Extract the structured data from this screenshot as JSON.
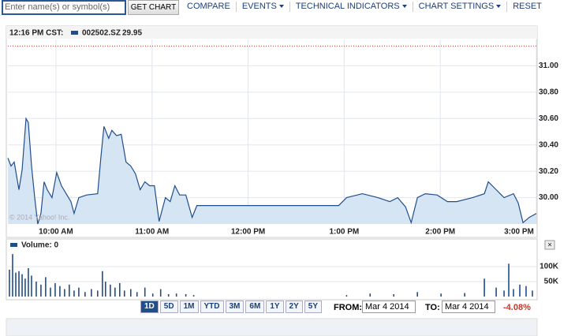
{
  "toolbar": {
    "search_placeholder": "Enter name(s) or symbol(s)",
    "button": "GET CHART",
    "menu": [
      "COMPARE",
      "EVENTS",
      "TECHNICAL INDICATORS",
      "CHART SETTINGS",
      "RESET"
    ]
  },
  "chart_data": [
    {
      "type": "line",
      "time_label": "12:16 PM CST:",
      "legend_value": 29.95,
      "copyright": "© 2014 Yahoo! Inc.",
      "reference_line": 31.15,
      "reference_color": "#c0392b",
      "series": [
        {
          "name": "002502.SZ",
          "color": "#1f4e8c",
          "fill": "#d6e5f3",
          "x": [
            9.5,
            9.533,
            9.566,
            9.615,
            9.648,
            9.689,
            9.713,
            9.746,
            9.779,
            9.811,
            9.844,
            9.877,
            9.91,
            9.959,
            10.008,
            10.057,
            10.107,
            10.156,
            10.189,
            10.238,
            10.32,
            10.434,
            10.467,
            10.5,
            10.549,
            10.582,
            10.631,
            10.68,
            10.73,
            10.779,
            10.828,
            10.877,
            10.926,
            10.975,
            11.025,
            11.074,
            11.139,
            11.189,
            11.238,
            11.287,
            11.352,
            11.418,
            11.467,
            12.943,
            13.025,
            13.189,
            13.352,
            13.475,
            13.557,
            13.639,
            13.697,
            13.762,
            13.844,
            13.967,
            14.074,
            14.172,
            14.336,
            14.459,
            14.5,
            14.582,
            14.664,
            14.762,
            14.811,
            14.861,
            14.926,
            15.0
          ],
          "values": [
            30.3,
            30.24,
            30.27,
            30.06,
            30.21,
            30.6,
            30.57,
            30.24,
            30.0,
            29.8,
            29.88,
            30.12,
            30.06,
            30.0,
            30.19,
            30.09,
            30.03,
            29.97,
            29.88,
            30.0,
            30.02,
            30.03,
            30.3,
            30.54,
            30.45,
            30.51,
            30.47,
            30.48,
            30.27,
            30.24,
            30.18,
            30.06,
            30.12,
            30.09,
            30.09,
            29.82,
            30.0,
            29.97,
            30.09,
            30.02,
            30.02,
            29.85,
            29.94,
            29.94,
            30.0,
            30.03,
            30.0,
            29.97,
            30.0,
            29.93,
            29.81,
            30.0,
            30.03,
            30.02,
            29.97,
            29.97,
            30.0,
            30.03,
            30.12,
            30.06,
            30.0,
            30.03,
            29.96,
            29.81,
            29.85,
            29.88
          ]
        }
      ],
      "xlim": [
        9.5,
        15.0
      ],
      "xticks": [
        {
          "value": 10,
          "label": "10:00 AM"
        },
        {
          "value": 11,
          "label": "11:00 AM"
        },
        {
          "value": 12,
          "label": "12:00 PM"
        },
        {
          "value": 13,
          "label": "1:00 PM"
        },
        {
          "value": 14,
          "label": "2:00 PM"
        },
        {
          "value": 15,
          "label": "3:00 PM"
        }
      ],
      "ylim": [
        29.8,
        31.2
      ],
      "yticks": [
        {
          "value": 30,
          "label": "30.00"
        },
        {
          "value": 30.2,
          "label": "30.20"
        },
        {
          "value": 30.4,
          "label": "30.40"
        },
        {
          "value": 30.6,
          "label": "30.60"
        },
        {
          "value": 30.8,
          "label": "30.80"
        },
        {
          "value": 31,
          "label": "31.00"
        }
      ],
      "grid": true
    },
    {
      "type": "bar",
      "legend": "Volume: 0",
      "color": "#1f4e8c",
      "x": [
        9.516,
        9.549,
        9.582,
        9.615,
        9.648,
        9.68,
        9.713,
        9.746,
        9.795,
        9.844,
        9.893,
        9.943,
        9.992,
        10.041,
        10.09,
        10.139,
        10.189,
        10.238,
        10.303,
        10.369,
        10.434,
        10.484,
        10.516,
        10.566,
        10.615,
        10.664,
        10.713,
        10.779,
        10.844,
        10.926,
        11.008,
        11.09,
        11.172,
        11.254,
        11.352,
        11.434,
        13.025,
        13.27,
        13.516,
        13.762,
        14.008,
        14.254,
        14.459,
        14.582,
        14.664,
        14.713,
        14.762,
        14.828,
        14.893,
        14.959
      ],
      "values": [
        90000,
        142000,
        80000,
        85000,
        75000,
        60000,
        95000,
        70000,
        50000,
        40000,
        65000,
        30000,
        45000,
        35000,
        25000,
        40000,
        20000,
        30000,
        15000,
        25000,
        20000,
        85000,
        50000,
        40000,
        30000,
        45000,
        20000,
        25000,
        15000,
        30000,
        10000,
        25000,
        8000,
        10000,
        8000,
        5000,
        5000,
        10000,
        8000,
        15000,
        10000,
        12000,
        60000,
        30000,
        20000,
        110000,
        25000,
        40000,
        35000,
        20000
      ],
      "xlim": [
        9.5,
        15.0
      ],
      "ylim": [
        0,
        145000
      ],
      "yticks": [
        {
          "value": 50000,
          "label": "50K"
        },
        {
          "value": 100000,
          "label": "100K"
        }
      ],
      "grid": true
    }
  ],
  "controls": {
    "ranges": [
      "1D",
      "5D",
      "1M",
      "YTD",
      "3M",
      "6M",
      "1Y",
      "2Y",
      "5Y"
    ],
    "active": 0,
    "from_label": "FROM:",
    "from": "Mar 4 2014",
    "to_label": "TO:",
    "to": "Mar 4 2014",
    "change": "-4.08%"
  }
}
